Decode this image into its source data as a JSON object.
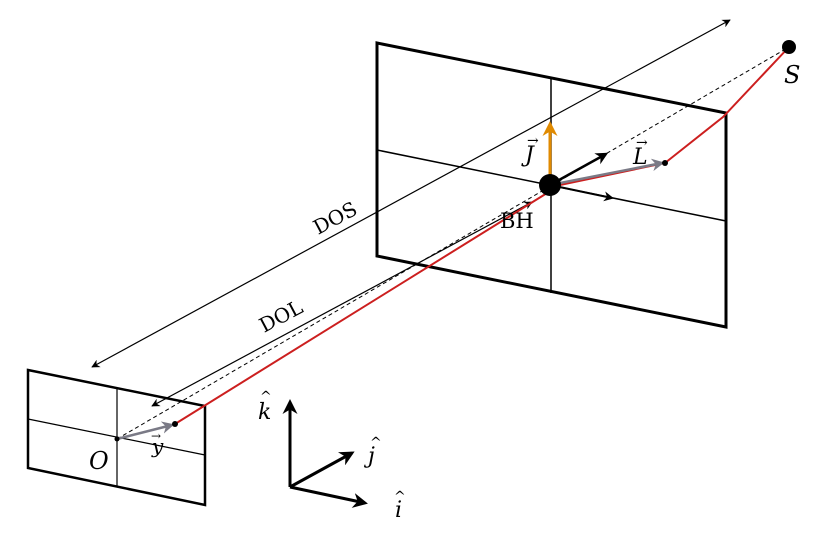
{
  "labels": {
    "source": "S",
    "observer": "O",
    "black_hole": "BH",
    "d_os": "DOS",
    "d_ol": "DOL",
    "spin": "J",
    "orbital_momentum": "L",
    "y_vec": "y",
    "k_hat": "k",
    "j_hat": "j",
    "i_hat": "i",
    "arrow_glyph": "→",
    "hat_glyph": "^"
  },
  "colors": {
    "frame": "#000000",
    "light_ray": "#cc1f1f",
    "spin_vector": "#e08a00",
    "grey_vector": "#7a7a86",
    "dashed_line": "#000000"
  }
}
